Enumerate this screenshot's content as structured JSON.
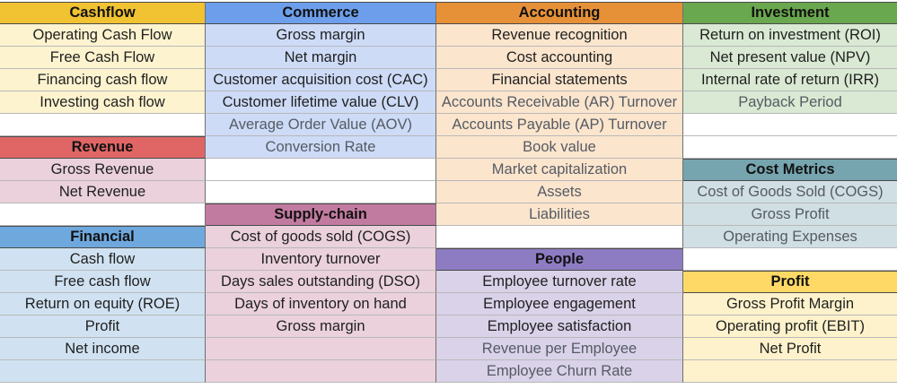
{
  "palette": {
    "cashflow_header": "#f1c232",
    "cashflow_fill": "#fdf3cf",
    "commerce_header": "#6d9eeb",
    "commerce_fill": "#cddbf7",
    "accounting_header": "#e69138",
    "accounting_fill": "#fbe5cd",
    "investment_header": "#6aa84f",
    "investment_fill": "#d9e9d3",
    "revenue_header": "#e06666",
    "revenue_fill": "#ead1db",
    "financial_header": "#6fa8dc",
    "financial_fill": "#d0e2f2",
    "supply_header": "#c27ba0",
    "supply_fill": "#ead1db",
    "people_header": "#8e7cc3",
    "people_fill": "#d9d2e9",
    "cost_header": "#76a5af",
    "cost_fill": "#d0dfe3",
    "profit_header": "#ffd966",
    "profit_fill": "#fef2cc"
  },
  "columns": [
    {
      "rows": [
        {
          "text": "Cashflow",
          "kind": "header",
          "group": "cashflow"
        },
        {
          "text": "Operating Cash Flow",
          "kind": "item",
          "group": "cashflow"
        },
        {
          "text": "Free Cash Flow",
          "kind": "item",
          "group": "cashflow"
        },
        {
          "text": "Financing cash flow",
          "kind": "item",
          "group": "cashflow"
        },
        {
          "text": "Investing cash flow",
          "kind": "item",
          "group": "cashflow"
        },
        {
          "text": "",
          "kind": "blank"
        },
        {
          "text": "Revenue",
          "kind": "header",
          "group": "revenue"
        },
        {
          "text": "Gross Revenue",
          "kind": "item",
          "group": "revenue"
        },
        {
          "text": "Net Revenue",
          "kind": "item",
          "group": "revenue"
        },
        {
          "text": "",
          "kind": "blank"
        },
        {
          "text": "Financial",
          "kind": "header",
          "group": "financial"
        },
        {
          "text": "Cash flow",
          "kind": "item",
          "group": "financial"
        },
        {
          "text": "Free cash flow",
          "kind": "item",
          "group": "financial"
        },
        {
          "text": "Return on equity (ROE)",
          "kind": "item",
          "group": "financial"
        },
        {
          "text": "Profit",
          "kind": "item",
          "group": "financial"
        },
        {
          "text": "Net income",
          "kind": "item",
          "group": "financial"
        },
        {
          "text": "",
          "kind": "item",
          "group": "financial"
        }
      ]
    },
    {
      "rows": [
        {
          "text": "Commerce",
          "kind": "header",
          "group": "commerce"
        },
        {
          "text": "Gross margin",
          "kind": "item",
          "group": "commerce"
        },
        {
          "text": "Net margin",
          "kind": "item",
          "group": "commerce"
        },
        {
          "text": "Customer acquisition cost (CAC)",
          "kind": "item",
          "group": "commerce"
        },
        {
          "text": "Customer lifetime value (CLV)",
          "kind": "item",
          "group": "commerce"
        },
        {
          "text": "Average Order Value (AOV)",
          "kind": "item",
          "group": "commerce",
          "dim": true
        },
        {
          "text": "Conversion Rate",
          "kind": "item",
          "group": "commerce",
          "dim": true
        },
        {
          "text": "",
          "kind": "blank"
        },
        {
          "text": "",
          "kind": "blank"
        },
        {
          "text": "Supply-chain",
          "kind": "header",
          "group": "supply"
        },
        {
          "text": "Cost of goods sold (COGS)",
          "kind": "item",
          "group": "supply"
        },
        {
          "text": "Inventory turnover",
          "kind": "item",
          "group": "supply"
        },
        {
          "text": "Days sales outstanding (DSO)",
          "kind": "item",
          "group": "supply"
        },
        {
          "text": "Days of inventory on hand",
          "kind": "item",
          "group": "supply"
        },
        {
          "text": "Gross margin",
          "kind": "item",
          "group": "supply"
        },
        {
          "text": "",
          "kind": "item",
          "group": "supply"
        },
        {
          "text": "",
          "kind": "item",
          "group": "supply"
        }
      ]
    },
    {
      "rows": [
        {
          "text": "Accounting",
          "kind": "header",
          "group": "accounting"
        },
        {
          "text": "Revenue recognition",
          "kind": "item",
          "group": "accounting"
        },
        {
          "text": "Cost accounting",
          "kind": "item",
          "group": "accounting"
        },
        {
          "text": "Financial statements",
          "kind": "item",
          "group": "accounting"
        },
        {
          "text": "Accounts Receivable (AR) Turnover",
          "kind": "item",
          "group": "accounting",
          "dim": true
        },
        {
          "text": "Accounts Payable (AP) Turnover",
          "kind": "item",
          "group": "accounting",
          "dim": true
        },
        {
          "text": "Book value",
          "kind": "item",
          "group": "accounting",
          "dim": true
        },
        {
          "text": "Market capitalization",
          "kind": "item",
          "group": "accounting",
          "dim": true
        },
        {
          "text": "Assets",
          "kind": "item",
          "group": "accounting",
          "dim": true
        },
        {
          "text": "Liabilities",
          "kind": "item",
          "group": "accounting",
          "dim": true
        },
        {
          "text": "",
          "kind": "blank"
        },
        {
          "text": "People",
          "kind": "header",
          "group": "people"
        },
        {
          "text": "Employee turnover rate",
          "kind": "item",
          "group": "people"
        },
        {
          "text": "Employee engagement",
          "kind": "item",
          "group": "people"
        },
        {
          "text": "Employee satisfaction",
          "kind": "item",
          "group": "people"
        },
        {
          "text": "Revenue per Employee",
          "kind": "item",
          "group": "people",
          "dim": true
        },
        {
          "text": "Employee Churn Rate",
          "kind": "item",
          "group": "people",
          "dim": true
        }
      ]
    },
    {
      "rows": [
        {
          "text": "Investment",
          "kind": "header",
          "group": "investment"
        },
        {
          "text": "Return on investment (ROI)",
          "kind": "item",
          "group": "investment"
        },
        {
          "text": "Net present value (NPV)",
          "kind": "item",
          "group": "investment"
        },
        {
          "text": "Internal rate of return (IRR)",
          "kind": "item",
          "group": "investment"
        },
        {
          "text": "Payback Period",
          "kind": "item",
          "group": "investment",
          "dim": true
        },
        {
          "text": "",
          "kind": "blank"
        },
        {
          "text": "",
          "kind": "blank"
        },
        {
          "text": "Cost Metrics",
          "kind": "header",
          "group": "cost"
        },
        {
          "text": "Cost of Goods Sold (COGS)",
          "kind": "item",
          "group": "cost",
          "dim": true
        },
        {
          "text": "Gross Profit",
          "kind": "item",
          "group": "cost",
          "dim": true
        },
        {
          "text": "Operating Expenses",
          "kind": "item",
          "group": "cost",
          "dim": true
        },
        {
          "text": "",
          "kind": "blank"
        },
        {
          "text": "Profit",
          "kind": "header",
          "group": "profit"
        },
        {
          "text": "Gross Profit Margin",
          "kind": "item",
          "group": "profit"
        },
        {
          "text": "Operating profit (EBIT)",
          "kind": "item",
          "group": "profit"
        },
        {
          "text": "Net Profit",
          "kind": "item",
          "group": "profit"
        },
        {
          "text": "",
          "kind": "item",
          "group": "profit"
        }
      ]
    }
  ]
}
